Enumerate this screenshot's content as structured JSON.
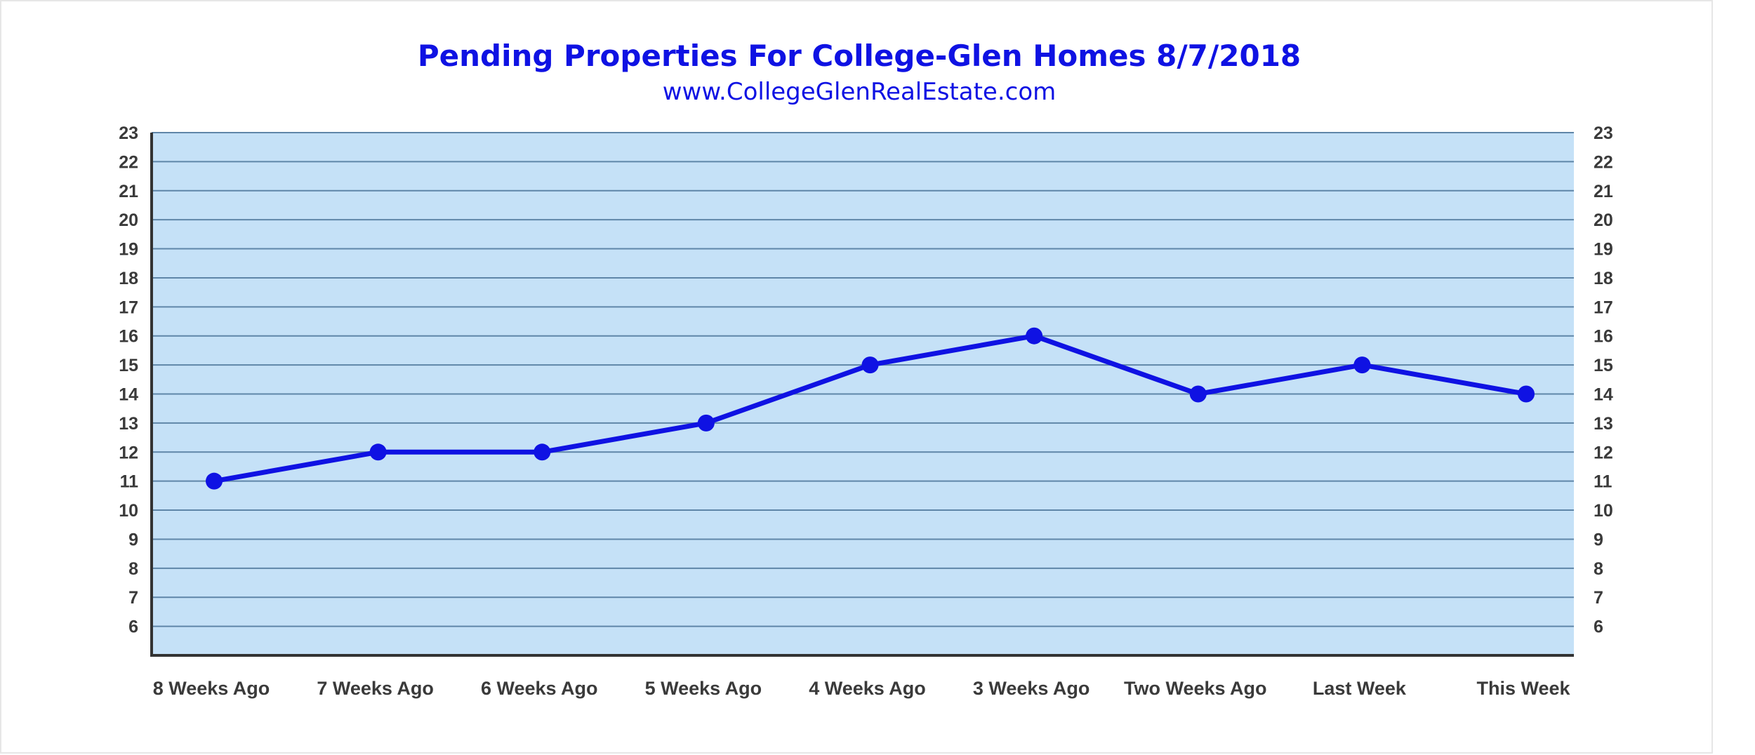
{
  "chart_data": {
    "type": "line",
    "title": "Pending Properties For College-Glen Homes 8/7/2018",
    "subtitle": "www.CollegeGlenRealEstate.com",
    "xlabel": "",
    "ylabel": "",
    "categories": [
      "8 Weeks Ago",
      "7 Weeks Ago",
      "6 Weeks Ago",
      "5 Weeks Ago",
      "4 Weeks Ago",
      "3 Weeks Ago",
      "Two Weeks Ago",
      "Last Week",
      "This Week"
    ],
    "series": [
      {
        "values": [
          11,
          12,
          12,
          13,
          15,
          16,
          14,
          15,
          14
        ]
      }
    ],
    "ylim": [
      5,
      23
    ],
    "yticks": [
      6,
      7,
      8,
      9,
      10,
      11,
      12,
      13,
      14,
      15,
      16,
      17,
      18,
      19,
      20,
      21,
      22,
      23
    ],
    "grid": true,
    "legend": "none",
    "colors": {
      "line": "#0f12e3",
      "plot_background": "#c5e1f7",
      "gridline": "#5f86a8",
      "axis": "#333333",
      "title": "#0f12e3"
    }
  }
}
